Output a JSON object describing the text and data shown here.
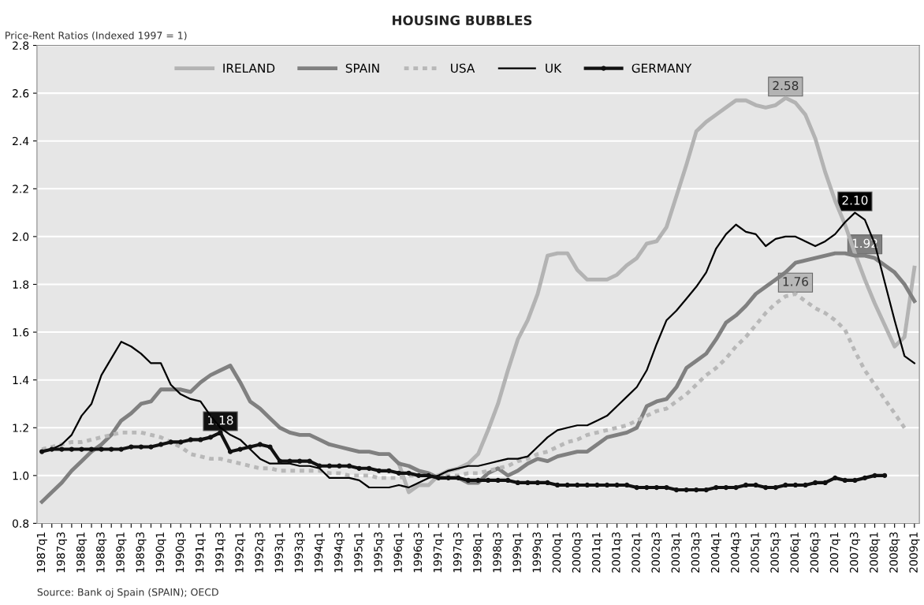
{
  "chart_data": {
    "type": "line",
    "title": "HOUSING BUBBLES",
    "ylabel": "Price-Rent Ratios (Indexed 1997 = 1)",
    "annotations": [
      "Source: Bank oj Spain (SPAIN); OECD"
    ],
    "categories": [
      "1987q1",
      null,
      "1987q3",
      null,
      "1988q1",
      null,
      "1988q3",
      null,
      "1989q1",
      null,
      "1989q3",
      null,
      "1990q1",
      null,
      "1990q3",
      null,
      "1991q1",
      null,
      "1991q3",
      null,
      "1992q1",
      null,
      "1992q3",
      null,
      "1993q1",
      null,
      "1993q3",
      null,
      "1994q1",
      null,
      "1994q3",
      null,
      "1995q1",
      null,
      "1995q3",
      null,
      "1996q1",
      null,
      "1996q3",
      null,
      "1997q1",
      null,
      "1997q3",
      null,
      "1998q1",
      null,
      "1998q3",
      null,
      "1999q1",
      null,
      "1999q3",
      null,
      "2000q1",
      null,
      "2000q3",
      null,
      "2001q1",
      null,
      "2001q3",
      null,
      "2002q1",
      null,
      "2002q3",
      null,
      "2003q1",
      null,
      "2003q3",
      null,
      "2004q1",
      null,
      "2004q3",
      null,
      "2005q1",
      null,
      "2005q3",
      null,
      "2006q1",
      null,
      "2006q3",
      null,
      "2007q1",
      null,
      "2007q3",
      null,
      "2008q1",
      null,
      "2008q3",
      null,
      "2009q1"
    ],
    "series": [
      {
        "name": "IRELAND",
        "color": "#b3b3b3",
        "line_style": "solid",
        "marker": "none",
        "values": [
          null,
          null,
          null,
          null,
          null,
          null,
          null,
          null,
          null,
          null,
          null,
          null,
          null,
          null,
          null,
          null,
          null,
          null,
          null,
          null,
          null,
          null,
          null,
          null,
          null,
          null,
          null,
          null,
          null,
          null,
          null,
          null,
          null,
          null,
          null,
          null,
          1.05,
          0.93,
          0.96,
          0.96,
          1.0,
          1.02,
          1.03,
          1.05,
          1.09,
          1.19,
          1.3,
          1.44,
          1.57,
          1.65,
          1.76,
          1.92,
          1.93,
          1.93,
          1.86,
          1.82,
          1.82,
          1.82,
          1.84,
          1.88,
          1.91,
          1.97,
          1.98,
          2.04,
          2.17,
          2.3,
          2.44,
          2.48,
          2.51,
          2.54,
          2.57,
          2.57,
          2.55,
          2.54,
          2.55,
          2.58,
          2.56,
          2.51,
          2.41,
          2.27,
          2.15,
          2.05,
          1.93,
          1.82,
          1.72,
          1.63,
          1.54,
          1.58,
          1.87
        ],
        "value_labels": [
          null,
          null,
          null,
          null,
          null,
          null,
          null,
          null,
          null,
          null,
          null,
          null,
          null,
          null,
          null,
          null,
          null,
          null,
          null,
          null,
          null,
          null,
          null,
          null,
          null,
          null,
          null,
          null,
          null,
          null,
          null,
          null,
          null,
          null,
          null,
          null,
          null,
          null,
          null,
          null,
          null,
          null,
          null,
          null,
          null,
          null,
          null,
          null,
          null,
          null,
          null,
          null,
          null,
          null,
          null,
          null,
          null,
          null,
          null,
          null,
          null,
          null,
          null,
          null,
          null,
          null,
          null,
          null,
          null,
          null,
          null,
          null,
          null,
          null,
          null,
          "2.58",
          null,
          null,
          null,
          null,
          null,
          null,
          null,
          null,
          null,
          null,
          null,
          null,
          null
        ]
      },
      {
        "name": "SPAIN",
        "color": "#808080",
        "line_style": "solid",
        "marker": "none",
        "values": [
          0.89,
          0.93,
          0.97,
          1.02,
          1.06,
          1.1,
          1.13,
          1.17,
          1.23,
          1.26,
          1.3,
          1.31,
          1.36,
          1.36,
          1.36,
          1.35,
          1.39,
          1.42,
          1.44,
          1.46,
          1.39,
          1.31,
          1.28,
          1.24,
          1.2,
          1.18,
          1.17,
          1.17,
          1.15,
          1.13,
          1.12,
          1.11,
          1.1,
          1.1,
          1.09,
          1.09,
          1.05,
          1.04,
          1.02,
          1.01,
          0.99,
          0.99,
          0.99,
          0.97,
          0.97,
          1.01,
          1.03,
          1.0,
          1.02,
          1.05,
          1.07,
          1.06,
          1.08,
          1.09,
          1.1,
          1.1,
          1.13,
          1.16,
          1.17,
          1.18,
          1.2,
          1.29,
          1.31,
          1.32,
          1.37,
          1.45,
          1.48,
          1.51,
          1.57,
          1.64,
          1.67,
          1.71,
          1.76,
          1.79,
          1.82,
          1.85,
          1.89,
          1.9,
          1.91,
          1.92,
          1.93,
          1.93,
          1.92,
          1.92,
          1.91,
          1.88,
          1.85,
          1.8,
          1.73
        ],
        "value_labels": [
          null,
          null,
          null,
          null,
          null,
          null,
          null,
          null,
          null,
          null,
          null,
          null,
          null,
          null,
          null,
          null,
          null,
          null,
          null,
          null,
          null,
          null,
          null,
          null,
          null,
          null,
          null,
          null,
          null,
          null,
          null,
          null,
          null,
          null,
          null,
          null,
          null,
          null,
          null,
          null,
          null,
          null,
          null,
          null,
          null,
          null,
          null,
          null,
          null,
          null,
          null,
          null,
          null,
          null,
          null,
          null,
          null,
          null,
          null,
          null,
          null,
          null,
          null,
          null,
          null,
          null,
          null,
          null,
          null,
          null,
          null,
          null,
          null,
          null,
          null,
          null,
          null,
          null,
          null,
          null,
          null,
          null,
          null,
          "1.92",
          null,
          null,
          null,
          null,
          null
        ]
      },
      {
        "name": "USA",
        "color": "#b8b8b8",
        "line_style": "dotted",
        "marker": "none",
        "values": [
          1.11,
          1.12,
          1.13,
          1.14,
          1.14,
          1.15,
          1.16,
          1.17,
          1.18,
          1.18,
          1.18,
          1.17,
          1.16,
          1.14,
          1.12,
          1.09,
          1.08,
          1.07,
          1.07,
          1.06,
          1.05,
          1.04,
          1.03,
          1.03,
          1.02,
          1.02,
          1.02,
          1.02,
          1.02,
          1.01,
          1.01,
          1.0,
          1.0,
          1.0,
          0.99,
          0.99,
          0.99,
          1.0,
          1.0,
          1.0,
          1.0,
          1.0,
          1.0,
          1.01,
          1.01,
          1.02,
          1.03,
          1.04,
          1.06,
          1.07,
          1.09,
          1.1,
          1.12,
          1.14,
          1.15,
          1.17,
          1.18,
          1.19,
          1.2,
          1.21,
          1.23,
          1.25,
          1.27,
          1.28,
          1.31,
          1.34,
          1.38,
          1.42,
          1.45,
          1.49,
          1.54,
          1.58,
          1.63,
          1.68,
          1.72,
          1.75,
          1.76,
          1.73,
          1.7,
          1.68,
          1.65,
          1.61,
          1.52,
          1.44,
          1.38,
          1.32,
          1.26,
          1.2,
          null
        ],
        "value_labels": [
          null,
          null,
          null,
          null,
          null,
          null,
          null,
          null,
          null,
          null,
          null,
          null,
          null,
          null,
          null,
          null,
          null,
          null,
          null,
          null,
          null,
          null,
          null,
          null,
          null,
          null,
          null,
          null,
          null,
          null,
          null,
          null,
          null,
          null,
          null,
          null,
          null,
          null,
          null,
          null,
          null,
          null,
          null,
          null,
          null,
          null,
          null,
          null,
          null,
          null,
          null,
          null,
          null,
          null,
          null,
          null,
          null,
          null,
          null,
          null,
          null,
          null,
          null,
          null,
          null,
          null,
          null,
          null,
          null,
          null,
          null,
          null,
          null,
          null,
          null,
          null,
          "1.76",
          null,
          null,
          null,
          null,
          null,
          null,
          null,
          null,
          null,
          null,
          null,
          null
        ]
      },
      {
        "name": "UK",
        "color": "#000000",
        "line_style": "solid",
        "marker": "none",
        "values": [
          1.1,
          1.11,
          1.13,
          1.17,
          1.25,
          1.3,
          1.42,
          1.49,
          1.56,
          1.54,
          1.51,
          1.47,
          1.47,
          1.38,
          1.34,
          1.32,
          1.31,
          1.25,
          1.2,
          1.17,
          1.15,
          1.11,
          1.07,
          1.05,
          1.05,
          1.05,
          1.04,
          1.04,
          1.03,
          0.99,
          0.99,
          0.99,
          0.98,
          0.95,
          0.95,
          0.95,
          0.96,
          0.95,
          0.97,
          0.99,
          1.0,
          1.02,
          1.03,
          1.04,
          1.04,
          1.05,
          1.06,
          1.07,
          1.07,
          1.08,
          1.12,
          1.16,
          1.19,
          1.2,
          1.21,
          1.21,
          1.23,
          1.25,
          1.29,
          1.33,
          1.37,
          1.44,
          1.55,
          1.65,
          1.69,
          1.74,
          1.79,
          1.85,
          1.95,
          2.01,
          2.05,
          2.02,
          2.01,
          1.96,
          1.99,
          2.0,
          2.0,
          1.98,
          1.96,
          1.98,
          2.01,
          2.06,
          2.1,
          2.07,
          1.97,
          1.81,
          1.65,
          1.5,
          1.47
        ],
        "value_labels": [
          null,
          null,
          null,
          null,
          null,
          null,
          null,
          null,
          null,
          null,
          null,
          null,
          null,
          null,
          null,
          null,
          null,
          null,
          null,
          null,
          null,
          null,
          null,
          null,
          null,
          null,
          null,
          null,
          null,
          null,
          null,
          null,
          null,
          null,
          null,
          null,
          null,
          null,
          null,
          null,
          null,
          null,
          null,
          null,
          null,
          null,
          null,
          null,
          null,
          null,
          null,
          null,
          null,
          null,
          null,
          null,
          null,
          null,
          null,
          null,
          null,
          null,
          null,
          null,
          null,
          null,
          null,
          null,
          null,
          null,
          null,
          null,
          null,
          null,
          null,
          null,
          null,
          null,
          null,
          null,
          null,
          null,
          "2.10",
          null,
          null,
          null,
          null,
          null,
          null
        ]
      },
      {
        "name": "GERMANY",
        "color": "#111111",
        "line_style": "solid",
        "marker": "circle",
        "values": [
          1.1,
          1.11,
          1.11,
          1.11,
          1.11,
          1.11,
          1.11,
          1.11,
          1.11,
          1.12,
          1.12,
          1.12,
          1.13,
          1.14,
          1.14,
          1.15,
          1.15,
          1.16,
          1.18,
          1.1,
          1.11,
          1.12,
          1.13,
          1.12,
          1.06,
          1.06,
          1.06,
          1.06,
          1.04,
          1.04,
          1.04,
          1.04,
          1.03,
          1.03,
          1.02,
          1.02,
          1.01,
          1.01,
          1.0,
          1.0,
          0.99,
          0.99,
          0.99,
          0.98,
          0.98,
          0.98,
          0.98,
          0.98,
          0.97,
          0.97,
          0.97,
          0.97,
          0.96,
          0.96,
          0.96,
          0.96,
          0.96,
          0.96,
          0.96,
          0.96,
          0.95,
          0.95,
          0.95,
          0.95,
          0.94,
          0.94,
          0.94,
          0.94,
          0.95,
          0.95,
          0.95,
          0.96,
          0.96,
          0.95,
          0.95,
          0.96,
          0.96,
          0.96,
          0.97,
          0.97,
          0.99,
          0.98,
          0.98,
          0.99,
          1.0,
          1.0,
          null,
          null,
          null
        ],
        "value_labels": [
          null,
          null,
          null,
          null,
          null,
          null,
          null,
          null,
          null,
          null,
          null,
          null,
          null,
          null,
          null,
          null,
          null,
          null,
          "1.18",
          null,
          null,
          null,
          null,
          null,
          null,
          null,
          null,
          null,
          null,
          null,
          null,
          null,
          null,
          null,
          null,
          null,
          null,
          null,
          null,
          null,
          null,
          null,
          null,
          null,
          null,
          null,
          null,
          null,
          null,
          null,
          null,
          null,
          null,
          null,
          null,
          null,
          null,
          null,
          null,
          null,
          null,
          null,
          null,
          null,
          null,
          null,
          null,
          null,
          null,
          null,
          null,
          null,
          null,
          null,
          null,
          null,
          null,
          null,
          null,
          null,
          null,
          null,
          null,
          null,
          null,
          null,
          null,
          null,
          null
        ]
      }
    ],
    "ylim": [
      0.8,
      2.8
    ],
    "yticks": [
      0.8,
      {
        "value": 1,
        "label": "1.0"
      },
      1.2,
      1.4,
      1.6,
      1.8,
      {
        "value": 2,
        "label": "2.0"
      },
      2.2,
      2.4,
      2.6,
      2.8
    ],
    "grid": "y",
    "legend": "top"
  }
}
